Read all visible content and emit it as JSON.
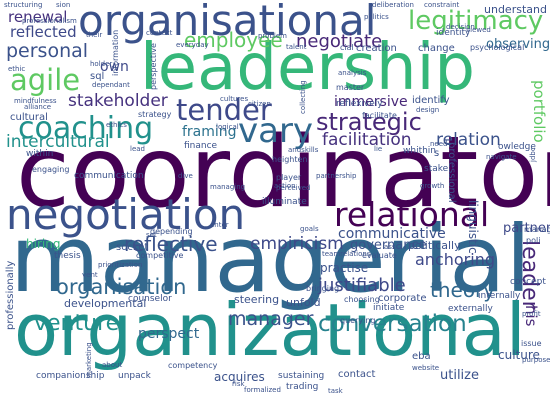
{
  "word_cloud": {
    "words": [
      {
        "id": "coordinator",
        "text": "coordinator",
        "color": "#440154"
      },
      {
        "id": "managerial",
        "text": "managerial",
        "color": "#31688e"
      },
      {
        "id": "organizational",
        "text": "organizational",
        "color": "#21918c"
      },
      {
        "id": "leadership",
        "text": "leadership",
        "color": "#35b779"
      },
      {
        "id": "organisational",
        "text": "organisational",
        "color": "#3b528b"
      },
      {
        "id": "negotiation",
        "text": "negotiation",
        "color": "#3b528b"
      },
      {
        "id": "coaching",
        "text": "coaching",
        "color": "#21918c"
      },
      {
        "id": "relational",
        "text": "relational",
        "color": "#440154"
      },
      {
        "id": "vary",
        "text": "vary",
        "color": "#31688e"
      },
      {
        "id": "strategic",
        "text": "strategic",
        "color": "#482878"
      },
      {
        "id": "agile",
        "text": "agile",
        "color": "#5ec962"
      },
      {
        "id": "tender",
        "text": "tender",
        "color": "#3e4989"
      },
      {
        "id": "legitimacy",
        "text": "legitimacy",
        "color": "#5ec962"
      },
      {
        "id": "employee",
        "text": "employee",
        "color": "#5ec962"
      },
      {
        "id": "personal",
        "text": "personal",
        "color": "#3b528b"
      },
      {
        "id": "negotiate",
        "text": "negotiate",
        "color": "#482878"
      },
      {
        "id": "reflected",
        "text": "reflected",
        "color": "#3e4989"
      },
      {
        "id": "renewal",
        "text": "renewal",
        "color": "#46327e"
      },
      {
        "id": "own",
        "text": "own",
        "color": "#3e4989"
      },
      {
        "id": "theory",
        "text": "theory",
        "color": "#31688e"
      },
      {
        "id": "leader",
        "text": "leader",
        "color": "#482878"
      },
      {
        "id": "conversation",
        "text": "conversation",
        "color": "#26828e"
      },
      {
        "id": "venture",
        "text": "venture",
        "color": "#21918c"
      },
      {
        "id": "manager",
        "text": "manager",
        "color": "#3b528b"
      },
      {
        "id": "organisation",
        "text": "organisation",
        "color": "#31688e"
      },
      {
        "id": "justifiable",
        "text": "justifiable",
        "color": "#3e4989"
      },
      {
        "id": "reflective",
        "text": "reflective",
        "color": "#3b528b"
      },
      {
        "id": "empiricism",
        "text": "empiricism",
        "color": "#3e4989"
      },
      {
        "id": "communicative",
        "text": "communicative",
        "color": "#3b528b"
      },
      {
        "id": "stakeholder",
        "text": "stakeholder",
        "color": "#46327e"
      },
      {
        "id": "immersive",
        "text": "immersive",
        "color": "#482878"
      },
      {
        "id": "facilitation",
        "text": "facilitation",
        "color": "#46327e"
      },
      {
        "id": "relation",
        "text": "relation",
        "color": "#3b528b"
      },
      {
        "id": "intercultural",
        "text": "intercultural",
        "color": "#21918c"
      },
      {
        "id": "framing",
        "text": "framing",
        "color": "#2c728e"
      },
      {
        "id": "portfolio",
        "text": "portfolio",
        "color": "#5ec962"
      },
      {
        "id": "anchoring",
        "text": "anchoring",
        "color": "#3e4989"
      },
      {
        "id": "culture",
        "text": "culture",
        "color": "#3b528b"
      },
      {
        "id": "his",
        "text": "his",
        "color": "#482878"
      },
      {
        "id": "understand",
        "text": "understand",
        "color": "#3b528b"
      },
      {
        "id": "observing",
        "text": "observing",
        "color": "#31688e"
      },
      {
        "id": "governance",
        "text": "governance",
        "color": "#3b528b"
      },
      {
        "id": "hiring",
        "text": "hiring",
        "color": "#35b779"
      },
      {
        "id": "partner",
        "text": "partner",
        "color": "#3e4989"
      },
      {
        "id": "developmental",
        "text": "developmental",
        "color": "#3b528b"
      },
      {
        "id": "perspect",
        "text": "perspect",
        "color": "#31688e"
      },
      {
        "id": "acquires",
        "text": "acquires",
        "color": "#3b528b"
      },
      {
        "id": "utilize",
        "text": "utilize",
        "color": "#3b528b"
      },
      {
        "id": "steering",
        "text": "steering",
        "color": "#3b528b"
      },
      {
        "id": "unfold",
        "text": "unfold",
        "color": "#3b528b"
      },
      {
        "id": "corporate",
        "text": "corporate",
        "color": "#3b528b"
      },
      {
        "id": "practise",
        "text": "practise",
        "color": "#3b528b"
      },
      {
        "id": "politically",
        "text": "politically",
        "color": "#3b528b"
      },
      {
        "id": "linguistic",
        "text": "linguistic",
        "color": "#3b528b"
      },
      {
        "id": "sql",
        "text": "sql",
        "color": "#3b528b"
      },
      {
        "id": "identify",
        "text": "identify",
        "color": "#3b528b"
      },
      {
        "id": "creation",
        "text": "creation",
        "color": "#3b528b"
      },
      {
        "id": "change",
        "text": "change",
        "color": "#3b528b"
      },
      {
        "id": "cultural",
        "text": "cultural",
        "color": "#3b528b"
      },
      {
        "id": "finance",
        "text": "finance",
        "color": "#3b528b"
      },
      {
        "id": "reflexively",
        "text": "reflexively",
        "color": "#3b528b"
      },
      {
        "id": "facilitate",
        "text": "facilitate",
        "color": "#3b528b"
      },
      {
        "id": "socket",
        "text": "socket",
        "color": "#3b528b"
      },
      {
        "id": "thesis",
        "text": "thesis",
        "color": "#3b528b"
      },
      {
        "id": "companionship",
        "text": "companionship",
        "color": "#3b528b"
      },
      {
        "id": "unpack",
        "text": "unpack",
        "color": "#3b528b"
      },
      {
        "id": "counselor",
        "text": "counselor",
        "color": "#3b528b"
      },
      {
        "id": "initiate",
        "text": "initiate",
        "color": "#3b528b"
      },
      {
        "id": "contact",
        "text": "contact",
        "color": "#3b528b"
      },
      {
        "id": "whithin",
        "text": "whithin",
        "color": "#3b528b"
      },
      {
        "id": "within",
        "text": "within",
        "color": "#3b528b"
      },
      {
        "id": "bringing",
        "text": "bringing",
        "color": "#3b528b"
      },
      {
        "id": "choosing",
        "text": "choosing",
        "color": "#3b528b"
      },
      {
        "id": "externally",
        "text": "externally",
        "color": "#3b528b"
      },
      {
        "id": "internally",
        "text": "internally",
        "color": "#3b528b"
      },
      {
        "id": "concept",
        "text": "concept",
        "color": "#3b528b"
      },
      {
        "id": "issue",
        "text": "issue",
        "color": "#3b528b"
      },
      {
        "id": "communication",
        "text": "communication",
        "color": "#3b528b"
      },
      {
        "id": "engaging",
        "text": "engaging",
        "color": "#3b528b"
      },
      {
        "id": "evaluate",
        "text": "evaluate",
        "color": "#3b528b"
      },
      {
        "id": "querying",
        "text": "querying",
        "color": "#3b528b"
      },
      {
        "id": "trading",
        "text": "trading",
        "color": "#3b528b"
      },
      {
        "id": "sustaining",
        "text": "sustaining",
        "color": "#3b528b"
      },
      {
        "id": "competency",
        "text": "competency",
        "color": "#3b528b"
      },
      {
        "id": "eba",
        "text": "eba",
        "color": "#3b528b"
      },
      {
        "id": "cultures",
        "text": "cultures",
        "color": "#3b528b"
      },
      {
        "id": "alliance",
        "text": "alliance",
        "color": "#3b528b"
      },
      {
        "id": "mindfulness",
        "text": "mindfulness",
        "color": "#3b528b"
      },
      {
        "id": "strategy",
        "text": "strategy",
        "color": "#3b528b"
      },
      {
        "id": "holder",
        "text": "holder",
        "color": "#3b528b"
      },
      {
        "id": "dependant",
        "text": "dependant",
        "color": "#3b528b"
      },
      {
        "id": "master",
        "text": "master",
        "color": "#3b528b"
      },
      {
        "id": "citizen",
        "text": "citizen",
        "color": "#3b528b"
      },
      {
        "id": "identity",
        "text": "identity",
        "color": "#3b528b"
      },
      {
        "id": "psychological",
        "text": "psychological",
        "color": "#3b528b"
      },
      {
        "id": "analysis",
        "text": "analysis",
        "color": "#3b528b"
      },
      {
        "id": "navigate",
        "text": "navigate",
        "color": "#3b528b"
      },
      {
        "id": "owledge",
        "text": "owledge",
        "color": "#3b528b"
      },
      {
        "id": "heighten",
        "text": "heighten",
        "color": "#3b528b"
      },
      {
        "id": "player",
        "text": "player",
        "color": "#3b528b"
      },
      {
        "id": "perceived",
        "text": "perceived",
        "color": "#3b528b"
      },
      {
        "id": "illuminate",
        "text": "illuminate",
        "color": "#3b528b"
      },
      {
        "id": "stake",
        "text": "stake",
        "color": "#3b528b"
      },
      {
        "id": "depending",
        "text": "depending",
        "color": "#3b528b"
      },
      {
        "id": "competitive",
        "text": "competitive",
        "color": "#3b528b"
      },
      {
        "id": "manage",
        "text": "manage",
        "color": "#3b528b"
      },
      {
        "id": "poli",
        "text": "poli",
        "color": "#3b528b"
      },
      {
        "id": "context",
        "text": "context",
        "color": "#3b528b"
      },
      {
        "id": "everyday",
        "text": "everyday",
        "color": "#3b528b"
      },
      {
        "id": "talent",
        "text": "talent",
        "color": "#3b528b"
      },
      {
        "id": "professional",
        "text": "professional",
        "color": "#3b528b"
      },
      {
        "id": "professionally",
        "text": "professionally",
        "color": "#3b528b"
      },
      {
        "id": "information",
        "text": "information",
        "color": "#3b528b"
      },
      {
        "id": "perspective",
        "text": "perspective",
        "color": "#3b528b"
      },
      {
        "id": "collecting",
        "text": "collecting",
        "color": "#3b528b"
      },
      {
        "id": "logical",
        "text": "logical",
        "color": "#3b528b"
      },
      {
        "id": "design",
        "text": "design",
        "color": "#3b528b"
      },
      {
        "id": "growth",
        "text": "growth",
        "color": "#3b528b"
      },
      {
        "id": "partnership",
        "text": "partnership",
        "color": "#3b528b"
      },
      {
        "id": "teamrelations",
        "text": "teamrelations",
        "color": "#3b528b"
      },
      {
        "id": "enter",
        "text": "enter",
        "color": "#3b528b"
      },
      {
        "id": "formalized",
        "text": "formalized",
        "color": "#3b528b"
      },
      {
        "id": "task",
        "text": "task",
        "color": "#3b528b"
      },
      {
        "id": "about",
        "text": "about",
        "color": "#3b528b"
      },
      {
        "id": "marketing",
        "text": "marketing",
        "color": "#3b528b"
      },
      {
        "id": "prioritization",
        "text": "prioritization",
        "color": "#3b528b"
      },
      {
        "id": "risk",
        "text": "risk",
        "color": "#3b528b"
      },
      {
        "id": "website",
        "text": "website",
        "color": "#3b528b"
      },
      {
        "id": "profit",
        "text": "profit",
        "color": "#3b528b"
      },
      {
        "id": "purpose",
        "text": "purpose",
        "color": "#3b528b"
      },
      {
        "id": "deliberation",
        "text": "deliberation",
        "color": "#3b528b"
      },
      {
        "id": "constraint",
        "text": "constraint",
        "color": "#3b528b"
      },
      {
        "id": "decision",
        "text": "decision",
        "color": "#3b528b"
      },
      {
        "id": "politics",
        "text": "politics",
        "color": "#3b528b"
      },
      {
        "id": "structuring",
        "text": "structuring",
        "color": "#3b528b"
      },
      {
        "id": "sion",
        "text": "sion",
        "color": "#3b528b"
      },
      {
        "id": "professionalism",
        "text": "professionalism",
        "color": "#3b528b"
      },
      {
        "id": "problem",
        "text": "problem",
        "color": "#3b528b"
      },
      {
        "id": "their",
        "text": "their",
        "color": "#3b528b"
      },
      {
        "id": "viewed",
        "text": "viewed",
        "color": "#3b528b"
      },
      {
        "id": "cial",
        "text": "cial",
        "color": "#3b528b"
      },
      {
        "id": "need",
        "text": "need",
        "color": "#3b528b"
      },
      {
        "id": "ethic",
        "text": "ethic",
        "color": "#3b528b"
      },
      {
        "id": "lead",
        "text": "lead",
        "color": "#3b528b"
      },
      {
        "id": "dive",
        "text": "dive",
        "color": "#3b528b"
      },
      {
        "id": "action",
        "text": "action",
        "color": "#3b528b"
      },
      {
        "id": "andskills",
        "text": "andskills",
        "color": "#3b528b"
      },
      {
        "id": "managing",
        "text": "managing",
        "color": "#3b528b"
      },
      {
        "id": "goals",
        "text": "goals",
        "color": "#3b528b"
      },
      {
        "id": "jdbc",
        "text": "jdbc",
        "color": "#3b528b"
      },
      {
        "id": "ass",
        "text": "ass",
        "color": "#3b528b"
      },
      {
        "id": "set",
        "text": "set",
        "color": "#3b528b"
      },
      {
        "id": "s",
        "text": "s",
        "color": "#3b528b"
      },
      {
        "id": "ethics",
        "text": "ethics",
        "color": "#3b528b"
      },
      {
        "id": "lie",
        "text": "lie",
        "color": "#3b528b"
      },
      {
        "id": "vent",
        "text": "vent",
        "color": "#3b528b"
      }
    ]
  }
}
